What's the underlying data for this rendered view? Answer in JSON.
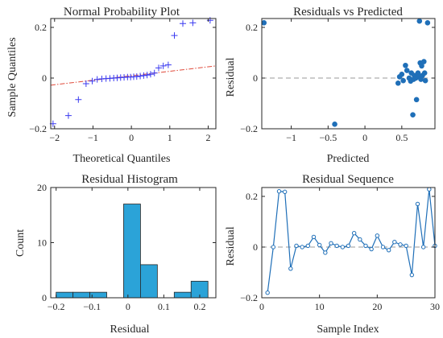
{
  "chart_data": [
    {
      "type": "scatter",
      "title": "Normal Probability Plot",
      "xlabel": "Theoretical Quantiles",
      "ylabel": "Sample Quantiles",
      "xlim": [
        -2.1,
        2.2
      ],
      "ylim": [
        -0.2,
        0.235
      ],
      "xticks": [
        -2,
        -1,
        0,
        1,
        2
      ],
      "yticks": [
        -0.2,
        0,
        0.2
      ],
      "ytick_labels": [
        "−0.2",
        "0",
        "0.2"
      ],
      "xtick_labels": [
        "−2",
        "−1",
        "0",
        "1",
        "2"
      ],
      "marker": "plus",
      "marker_color": "#3a3af0",
      "points": [
        [
          -2.04,
          -0.18
        ],
        [
          -1.64,
          -0.148
        ],
        [
          -1.38,
          -0.085
        ],
        [
          -1.18,
          -0.022
        ],
        [
          -1.02,
          -0.012
        ],
        [
          -0.89,
          -0.005
        ],
        [
          -0.77,
          -0.003
        ],
        [
          -0.66,
          -0.002
        ],
        [
          -0.56,
          -0.001
        ],
        [
          -0.46,
          0.0
        ],
        [
          -0.37,
          0.001
        ],
        [
          -0.28,
          0.002
        ],
        [
          -0.19,
          0.003
        ],
        [
          -0.1,
          0.004
        ],
        [
          -0.02,
          0.004
        ],
        [
          0.06,
          0.005
        ],
        [
          0.14,
          0.006
        ],
        [
          0.23,
          0.008
        ],
        [
          0.32,
          0.01
        ],
        [
          0.41,
          0.012
        ],
        [
          0.5,
          0.015
        ],
        [
          0.6,
          0.02
        ],
        [
          0.71,
          0.04
        ],
        [
          0.83,
          0.048
        ],
        [
          0.96,
          0.052
        ],
        [
          1.12,
          0.168
        ],
        [
          1.34,
          0.215
        ],
        [
          1.6,
          0.218
        ],
        [
          2.05,
          0.228
        ]
      ],
      "reference_line": {
        "x": [
          -2.1,
          2.2
        ],
        "y": [
          -0.028,
          0.048
        ],
        "color": "#e04a3a",
        "style": "dash-dot"
      }
    },
    {
      "type": "scatter",
      "title": "Residuals vs Predicted",
      "xlabel": "Predicted",
      "ylabel": "Residual",
      "xlim": [
        -1.4,
        0.95
      ],
      "ylim": [
        -0.2,
        0.235
      ],
      "xticks": [
        -1,
        -0.5,
        0,
        0.5
      ],
      "xtick_labels": [
        "−1",
        "−0.5",
        "0",
        "0.5"
      ],
      "yticks": [
        -0.2,
        0,
        0.2
      ],
      "ytick_labels": [
        "−0.2",
        "0",
        "0.2"
      ],
      "marker": "circle",
      "marker_color": "#1f6fb8",
      "zero_line": {
        "y": 0,
        "color": "#9a9a9a",
        "style": "dashed"
      },
      "points": [
        [
          -1.37,
          0.218
        ],
        [
          -0.41,
          -0.182
        ],
        [
          0.45,
          -0.02
        ],
        [
          0.47,
          0.005
        ],
        [
          0.5,
          0.015
        ],
        [
          0.52,
          -0.01
        ],
        [
          0.55,
          0.05
        ],
        [
          0.57,
          0.03
        ],
        [
          0.6,
          0.0
        ],
        [
          0.62,
          -0.012
        ],
        [
          0.63,
          0.02
        ],
        [
          0.65,
          -0.145
        ],
        [
          0.66,
          -0.005
        ],
        [
          0.67,
          0.01
        ],
        [
          0.69,
          0.0
        ],
        [
          0.7,
          -0.085
        ],
        [
          0.72,
          0.02
        ],
        [
          0.73,
          0.005
        ],
        [
          0.74,
          0.225
        ],
        [
          0.75,
          0.06
        ],
        [
          0.76,
          -0.005
        ],
        [
          0.77,
          0.048
        ],
        [
          0.78,
          0.01
        ],
        [
          0.8,
          0.065
        ],
        [
          0.81,
          0.02
        ],
        [
          0.82,
          -0.01
        ],
        [
          0.85,
          0.218
        ]
      ]
    },
    {
      "type": "bar",
      "title": "Residual Histogram",
      "xlabel": "Residual",
      "ylabel": "Count",
      "xlim": [
        -0.215,
        0.245
      ],
      "ylim": [
        0,
        20
      ],
      "xticks": [
        -0.2,
        -0.1,
        0,
        0.1,
        0.2
      ],
      "xtick_labels": [
        "−0.2",
        "−0.1",
        "0",
        "0.1",
        "0.2"
      ],
      "yticks": [
        0,
        10,
        20
      ],
      "bar_color": "#2ba3d8",
      "bins": [
        {
          "x0": -0.2,
          "x1": -0.153,
          "count": 1
        },
        {
          "x0": -0.153,
          "x1": -0.106,
          "count": 1
        },
        {
          "x0": -0.106,
          "x1": -0.059,
          "count": 1
        },
        {
          "x0": -0.059,
          "x1": -0.012,
          "count": 0
        },
        {
          "x0": -0.012,
          "x1": 0.035,
          "count": 17
        },
        {
          "x0": 0.035,
          "x1": 0.082,
          "count": 6
        },
        {
          "x0": 0.082,
          "x1": 0.129,
          "count": 0
        },
        {
          "x0": 0.129,
          "x1": 0.176,
          "count": 1
        },
        {
          "x0": 0.176,
          "x1": 0.223,
          "count": 3
        }
      ]
    },
    {
      "type": "line",
      "title": "Residual Sequence",
      "xlabel": "Sample Index",
      "ylabel": "Residual",
      "xlim": [
        0,
        30
      ],
      "ylim": [
        -0.2,
        0.235
      ],
      "xticks": [
        0,
        10,
        20,
        30
      ],
      "yticks": [
        -0.2,
        0,
        0.2
      ],
      "ytick_labels": [
        "−0.2",
        "0",
        "0.2"
      ],
      "line_color": "#1f6fb8",
      "zero_line": {
        "y": 0,
        "color": "#9a9a9a",
        "style": "dashed"
      },
      "x": [
        1,
        2,
        3,
        4,
        5,
        6,
        7,
        8,
        9,
        10,
        11,
        12,
        13,
        14,
        15,
        16,
        17,
        18,
        19,
        20,
        21,
        22,
        23,
        24,
        25,
        26,
        27,
        28,
        29,
        30
      ],
      "y": [
        -0.18,
        0.0,
        0.22,
        0.218,
        -0.085,
        0.005,
        0.0,
        0.005,
        0.04,
        0.008,
        -0.022,
        0.015,
        0.005,
        0.0,
        0.005,
        0.055,
        0.03,
        0.005,
        -0.008,
        0.045,
        0.0,
        -0.012,
        0.02,
        0.01,
        0.005,
        -0.11,
        0.17,
        0.0,
        0.228,
        0.005
      ]
    }
  ]
}
